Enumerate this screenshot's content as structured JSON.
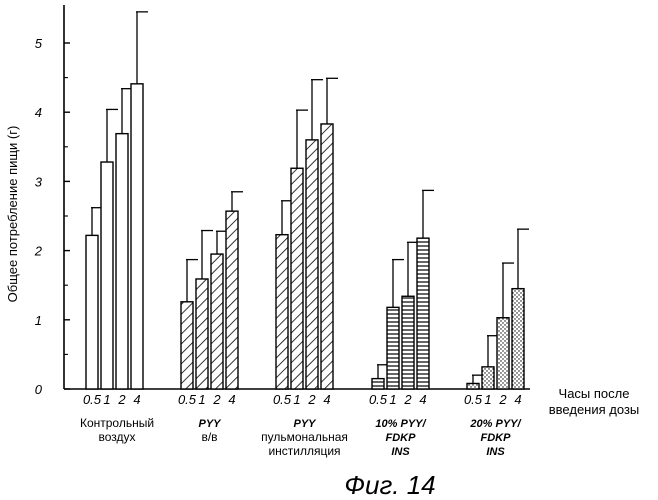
{
  "chart_data": {
    "type": "bar",
    "ylabel": "Общее потребление пищи (г)",
    "xlabel": [
      "Часы после",
      "введения дозы"
    ],
    "ylim": [
      0,
      5.5
    ],
    "yticks": [
      0,
      1,
      2,
      3,
      4,
      5
    ],
    "categories": [
      "0.5",
      "1",
      "2",
      "4"
    ],
    "groups": [
      {
        "label": [
          "Контрольный",
          "воздух"
        ],
        "italic": false,
        "pattern": "plain",
        "values": [
          2.22,
          3.28,
          3.69,
          4.41
        ],
        "errors": [
          0.4,
          0.76,
          0.65,
          1.04
        ]
      },
      {
        "label": [
          "PYY",
          "в/в"
        ],
        "italic": true,
        "pattern": "diagonal",
        "values": [
          1.26,
          1.59,
          1.95,
          2.57
        ],
        "errors": [
          0.61,
          0.7,
          0.33,
          0.28
        ]
      },
      {
        "label": [
          "PYY",
          "пульмональная",
          "инстилляция"
        ],
        "italic": true,
        "pattern": "diagonal",
        "values": [
          2.23,
          3.19,
          3.6,
          3.83
        ],
        "errors": [
          0.49,
          0.84,
          0.87,
          0.66
        ]
      },
      {
        "label": [
          "10% PYY/",
          "FDKP",
          "INS"
        ],
        "italic": true,
        "pattern": "horizontal",
        "values": [
          0.15,
          1.18,
          1.34,
          2.18
        ],
        "errors": [
          0.2,
          0.69,
          0.78,
          0.69
        ]
      },
      {
        "label": [
          "20% PYY/",
          "FDKP",
          "INS"
        ],
        "italic": true,
        "pattern": "dotted",
        "values": [
          0.08,
          0.32,
          1.03,
          1.45
        ],
        "errors": [
          0.12,
          0.45,
          0.79,
          0.86
        ]
      }
    ],
    "grid": false,
    "legend": "none"
  },
  "caption": "Фиг. 14"
}
